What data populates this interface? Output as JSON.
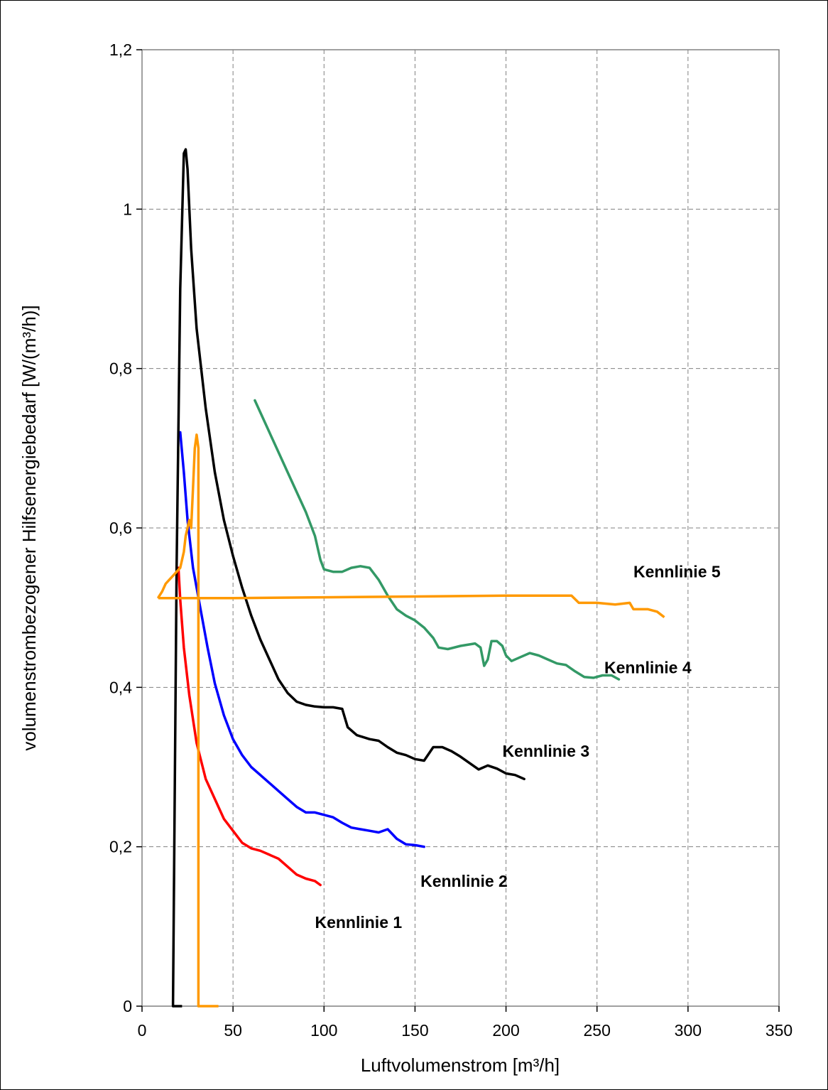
{
  "chart_data": {
    "type": "line",
    "xlabel": "Luftvolumenstrom [m³/h]",
    "ylabel": "volumenstrombezogener Hilfsenergiebedarf [W/(m³/h)]",
    "xlim": [
      0,
      350
    ],
    "ylim": [
      0,
      1.2
    ],
    "x_ticks": [
      0,
      50,
      100,
      150,
      200,
      250,
      300,
      350
    ],
    "x_tick_labels": [
      "0",
      "50",
      "100",
      "150",
      "200",
      "250",
      "300",
      "350"
    ],
    "y_ticks": [
      0,
      0.2,
      0.4,
      0.6,
      0.8,
      1.0,
      1.2
    ],
    "y_tick_labels": [
      "0",
      "0,2",
      "0,4",
      "0,6",
      "0,8",
      "1",
      "1,2"
    ],
    "grid": true,
    "series": [
      {
        "name": "Kennlinie 1",
        "color": "#ff0000",
        "label_at": [
          95,
          0.105
        ],
        "points": [
          [
            20,
            0.55
          ],
          [
            21,
            0.51
          ],
          [
            23,
            0.45
          ],
          [
            26,
            0.39
          ],
          [
            30,
            0.33
          ],
          [
            35,
            0.285
          ],
          [
            40,
            0.26
          ],
          [
            45,
            0.235
          ],
          [
            50,
            0.22
          ],
          [
            55,
            0.205
          ],
          [
            60,
            0.198
          ],
          [
            65,
            0.195
          ],
          [
            70,
            0.19
          ],
          [
            75,
            0.185
          ],
          [
            80,
            0.175
          ],
          [
            85,
            0.165
          ],
          [
            90,
            0.16
          ],
          [
            95,
            0.157
          ],
          [
            98,
            0.152
          ]
        ]
      },
      {
        "name": "Kennlinie 2",
        "color": "#0000ff",
        "label_at": [
          153,
          0.157
        ],
        "points": [
          [
            21,
            0.72
          ],
          [
            23,
            0.67
          ],
          [
            25,
            0.61
          ],
          [
            28,
            0.55
          ],
          [
            32,
            0.5
          ],
          [
            36,
            0.45
          ],
          [
            40,
            0.405
          ],
          [
            45,
            0.365
          ],
          [
            50,
            0.335
          ],
          [
            55,
            0.315
          ],
          [
            60,
            0.3
          ],
          [
            65,
            0.29
          ],
          [
            70,
            0.28
          ],
          [
            75,
            0.27
          ],
          [
            80,
            0.26
          ],
          [
            85,
            0.25
          ],
          [
            90,
            0.243
          ],
          [
            95,
            0.243
          ],
          [
            100,
            0.24
          ],
          [
            105,
            0.237
          ],
          [
            110,
            0.23
          ],
          [
            115,
            0.224
          ],
          [
            120,
            0.222
          ],
          [
            125,
            0.22
          ],
          [
            130,
            0.218
          ],
          [
            135,
            0.222
          ],
          [
            140,
            0.21
          ],
          [
            145,
            0.203
          ],
          [
            150,
            0.202
          ],
          [
            155,
            0.2
          ]
        ]
      },
      {
        "name": "Kennlinie 3",
        "color": "#000000",
        "label_at": [
          198,
          0.32
        ],
        "points": [
          [
            17,
            0
          ],
          [
            19,
            0.55
          ],
          [
            21,
            0.9
          ],
          [
            23,
            1.07
          ],
          [
            24,
            1.075
          ],
          [
            25,
            1.05
          ],
          [
            27,
            0.95
          ],
          [
            30,
            0.85
          ],
          [
            35,
            0.75
          ],
          [
            40,
            0.67
          ],
          [
            45,
            0.61
          ],
          [
            50,
            0.565
          ],
          [
            55,
            0.525
          ],
          [
            60,
            0.49
          ],
          [
            65,
            0.46
          ],
          [
            70,
            0.435
          ],
          [
            75,
            0.41
          ],
          [
            80,
            0.393
          ],
          [
            85,
            0.382
          ],
          [
            90,
            0.378
          ],
          [
            95,
            0.376
          ],
          [
            100,
            0.375
          ],
          [
            105,
            0.375
          ],
          [
            110,
            0.373
          ],
          [
            113,
            0.35
          ],
          [
            118,
            0.34
          ],
          [
            125,
            0.335
          ],
          [
            130,
            0.333
          ],
          [
            135,
            0.325
          ],
          [
            140,
            0.318
          ],
          [
            145,
            0.315
          ],
          [
            150,
            0.31
          ],
          [
            155,
            0.308
          ],
          [
            160,
            0.325
          ],
          [
            165,
            0.325
          ],
          [
            170,
            0.32
          ],
          [
            175,
            0.313
          ],
          [
            180,
            0.305
          ],
          [
            185,
            0.297
          ],
          [
            190,
            0.302
          ],
          [
            195,
            0.298
          ],
          [
            200,
            0.292
          ],
          [
            205,
            0.29
          ],
          [
            210,
            0.285
          ]
        ],
        "tail": [
          [
            17,
            0
          ],
          [
            22,
            0
          ]
        ]
      },
      {
        "name": "Kennlinie 4",
        "color": "#339966",
        "label_at": [
          254,
          0.425
        ],
        "points": [
          [
            62,
            0.76
          ],
          [
            70,
            0.72
          ],
          [
            80,
            0.67
          ],
          [
            90,
            0.62
          ],
          [
            95,
            0.59
          ],
          [
            98,
            0.56
          ],
          [
            100,
            0.548
          ],
          [
            105,
            0.545
          ],
          [
            110,
            0.545
          ],
          [
            115,
            0.55
          ],
          [
            120,
            0.552
          ],
          [
            125,
            0.55
          ],
          [
            130,
            0.535
          ],
          [
            135,
            0.515
          ],
          [
            140,
            0.498
          ],
          [
            145,
            0.49
          ],
          [
            150,
            0.484
          ],
          [
            155,
            0.475
          ],
          [
            160,
            0.462
          ],
          [
            163,
            0.45
          ],
          [
            168,
            0.448
          ],
          [
            175,
            0.452
          ],
          [
            183,
            0.455
          ],
          [
            186,
            0.45
          ],
          [
            188,
            0.427
          ],
          [
            190,
            0.435
          ],
          [
            192,
            0.458
          ],
          [
            195,
            0.458
          ],
          [
            198,
            0.452
          ],
          [
            200,
            0.44
          ],
          [
            203,
            0.433
          ],
          [
            208,
            0.438
          ],
          [
            213,
            0.443
          ],
          [
            218,
            0.44
          ],
          [
            223,
            0.435
          ],
          [
            228,
            0.43
          ],
          [
            233,
            0.428
          ],
          [
            238,
            0.42
          ],
          [
            243,
            0.413
          ],
          [
            248,
            0.412
          ],
          [
            253,
            0.415
          ],
          [
            258,
            0.415
          ],
          [
            262,
            0.41
          ]
        ]
      },
      {
        "name": "Kennlinie 5",
        "color": "#ff9900",
        "label_at": [
          270,
          0.545
        ],
        "points": [
          [
            9,
            0.513
          ],
          [
            11,
            0.52
          ],
          [
            13,
            0.53
          ],
          [
            15,
            0.535
          ],
          [
            17,
            0.54
          ],
          [
            19,
            0.545
          ],
          [
            21,
            0.55
          ],
          [
            23,
            0.57
          ],
          [
            24,
            0.59
          ],
          [
            25,
            0.6
          ],
          [
            26,
            0.61
          ],
          [
            27,
            0.6
          ],
          [
            28,
            0.65
          ],
          [
            29,
            0.7
          ],
          [
            30,
            0.717
          ],
          [
            31,
            0.7
          ],
          [
            31,
            0.0
          ]
        ],
        "flat": [
          [
            9,
            0.512
          ],
          [
            50,
            0.512
          ],
          [
            100,
            0.513
          ],
          [
            150,
            0.514
          ],
          [
            200,
            0.515
          ],
          [
            236,
            0.515
          ],
          [
            240,
            0.506
          ],
          [
            250,
            0.506
          ],
          [
            260,
            0.504
          ],
          [
            268,
            0.506
          ],
          [
            270,
            0.498
          ],
          [
            278,
            0.498
          ],
          [
            283,
            0.495
          ],
          [
            287,
            0.488
          ]
        ],
        "tail": [
          [
            31,
            0
          ],
          [
            42,
            0
          ]
        ]
      }
    ]
  }
}
